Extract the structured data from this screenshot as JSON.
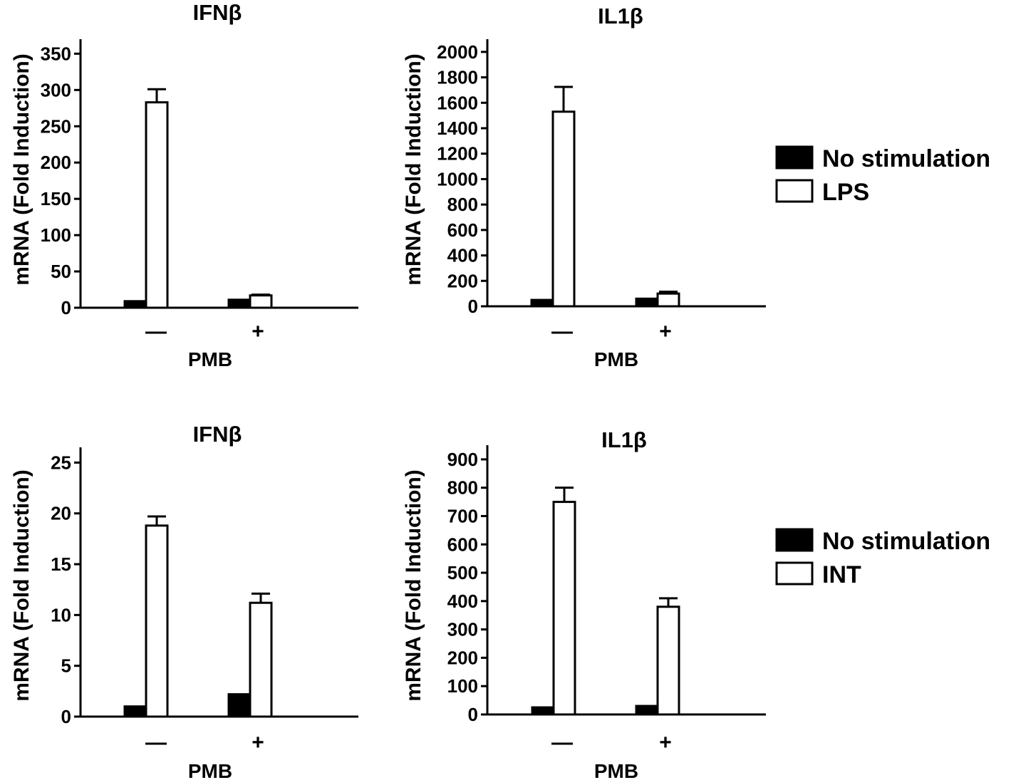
{
  "chart_data": [
    {
      "type": "bar",
      "title": "IFNβ",
      "ylabel": "mRNA (Fold Induction)",
      "xlabel": "PMB",
      "categories": [
        "—",
        "+"
      ],
      "ylim": [
        0,
        370
      ],
      "yticks": [
        0,
        50,
        100,
        150,
        200,
        250,
        300,
        350
      ],
      "series": [
        {
          "name": "No stimulation",
          "values": [
            9,
            11
          ],
          "errors": [
            0,
            0
          ]
        },
        {
          "name": "LPS",
          "values": [
            283,
            17
          ],
          "errors": [
            18,
            1
          ]
        }
      ]
    },
    {
      "type": "bar",
      "title": "IL1β",
      "ylabel": "mRNA (Fold Induction)",
      "xlabel": "PMB",
      "categories": [
        "—",
        "+"
      ],
      "ylim": [
        0,
        2100
      ],
      "yticks": [
        0,
        200,
        400,
        600,
        800,
        1000,
        1200,
        1400,
        1600,
        1800,
        2000
      ],
      "series": [
        {
          "name": "No stimulation",
          "values": [
            50,
            60
          ],
          "errors": [
            0,
            0
          ]
        },
        {
          "name": "LPS",
          "values": [
            1530,
            100
          ],
          "errors": [
            195,
            15
          ]
        }
      ]
    },
    {
      "type": "bar",
      "title": "IFNβ",
      "ylabel": "mRNA (Fold Induction)",
      "xlabel": "PMB",
      "categories": [
        "—",
        "+"
      ],
      "ylim": [
        0,
        26.5
      ],
      "yticks": [
        0,
        5,
        10,
        15,
        20,
        25
      ],
      "series": [
        {
          "name": "No stimulation",
          "values": [
            1,
            2.2
          ],
          "errors": [
            0,
            0
          ]
        },
        {
          "name": "INT",
          "values": [
            18.8,
            11.2
          ],
          "errors": [
            0.9,
            0.9
          ]
        }
      ]
    },
    {
      "type": "bar",
      "title": "IL1β",
      "ylabel": "mRNA (Fold Induction)",
      "xlabel": "PMB",
      "categories": [
        "—",
        "+"
      ],
      "ylim": [
        0,
        950
      ],
      "yticks": [
        0,
        100,
        200,
        300,
        400,
        500,
        600,
        700,
        800,
        900
      ],
      "series": [
        {
          "name": "No stimulation",
          "values": [
            25,
            30
          ],
          "errors": [
            0,
            0
          ]
        },
        {
          "name": "INT",
          "values": [
            750,
            380
          ],
          "errors": [
            50,
            30
          ]
        }
      ]
    }
  ],
  "legends": [
    {
      "entries": [
        {
          "label": "No stimulation",
          "color": "#000000"
        },
        {
          "label": "LPS",
          "color": "#ffffff"
        }
      ]
    },
    {
      "entries": [
        {
          "label": "No stimulation",
          "color": "#000000"
        },
        {
          "label": "INT",
          "color": "#ffffff"
        }
      ]
    }
  ]
}
